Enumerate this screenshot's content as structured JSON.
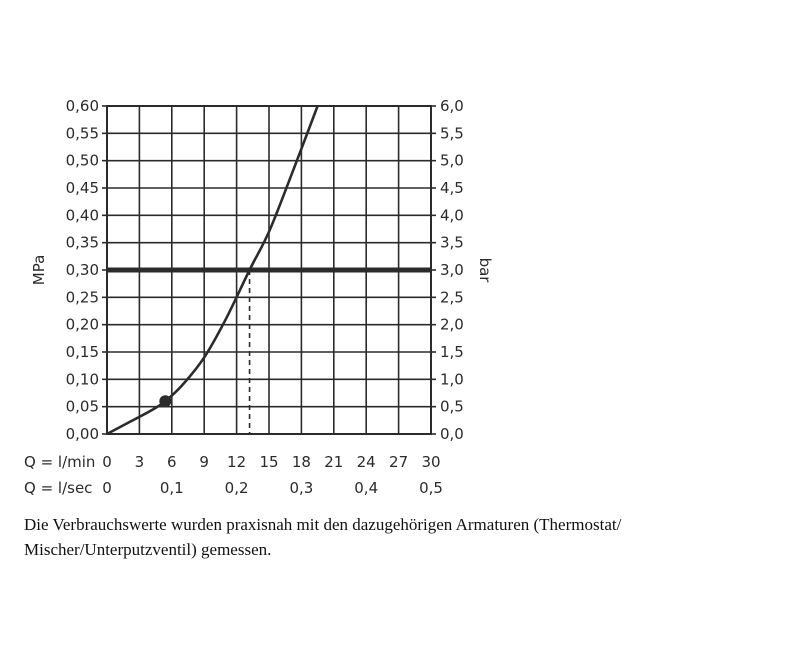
{
  "chart_data": {
    "type": "line",
    "ylabel_left": "MPa",
    "ylabel_right": "bar",
    "y_ticks_left": [
      "0,00",
      "0,05",
      "0,10",
      "0,15",
      "0,20",
      "0,25",
      "0,30",
      "0,35",
      "0,40",
      "0,45",
      "0,50",
      "0,55",
      "0,60"
    ],
    "y_ticks_right": [
      "0,0",
      "0,5",
      "1,0",
      "1,5",
      "2,0",
      "2,5",
      "3,0",
      "3,5",
      "4,0",
      "4,5",
      "5,0",
      "5,5",
      "6,0"
    ],
    "ylim": [
      0,
      0.6
    ],
    "xlim": [
      0,
      30
    ],
    "x_axis_lmin": {
      "label": "Q = l/min",
      "ticks": [
        "0",
        "3",
        "6",
        "9",
        "12",
        "15",
        "18",
        "21",
        "24",
        "27",
        "30"
      ],
      "values": [
        0,
        3,
        6,
        9,
        12,
        15,
        18,
        21,
        24,
        27,
        30
      ]
    },
    "x_axis_lsec": {
      "label": "Q = l/sec",
      "ticks": [
        "0",
        "0,1",
        "0,2",
        "0,3",
        "0,4",
        "0,5"
      ],
      "values_lmin": [
        0,
        6,
        12,
        18,
        24,
        30
      ]
    },
    "grid": true,
    "series": [
      {
        "x": [
          0,
          2,
          4,
          5.4,
          7,
          9,
          11,
          13.2,
          15,
          17,
          19.5
        ],
        "y": [
          0,
          0.021,
          0.042,
          0.06,
          0.09,
          0.14,
          0.21,
          0.3,
          0.37,
          0.47,
          0.6
        ]
      }
    ],
    "reference_line_y": 0.3,
    "operating_point": {
      "x": 13.2,
      "y": 0.3
    },
    "marker_point": {
      "x": 5.4,
      "y": 0.06
    }
  },
  "caption": {
    "line1": "Die Verbrauchswerte wurden praxisnah mit den dazugehörigen Armaturen (Thermostat/",
    "line2": "Mischer/Unterputzventil) gemessen."
  }
}
